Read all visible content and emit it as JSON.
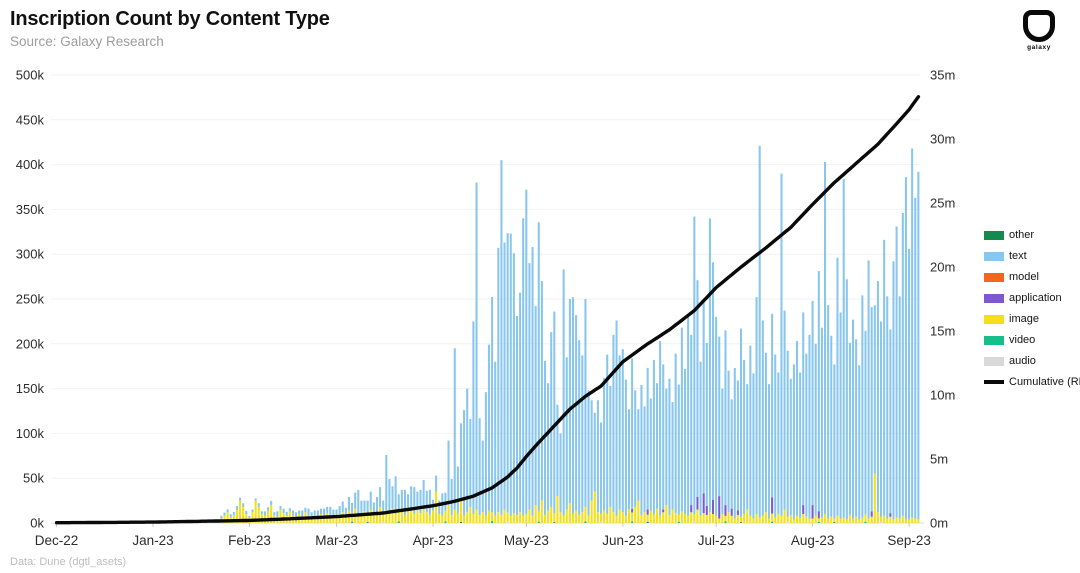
{
  "header": {
    "title": "Inscription Count by Content Type",
    "source": "Source: Galaxy Research"
  },
  "footer": {
    "credit": "Data: Dune (dgtl_asets)"
  },
  "logo": {
    "text": "galaxy"
  },
  "chart_data": {
    "type": "bar",
    "title": "Inscription Count by Content Type",
    "subtitle": "Source: Galaxy Research",
    "x_unit": "day",
    "days": 278,
    "grid": "horizontal",
    "ylim_left_thousands": [
      0,
      500
    ],
    "ylim_right_millions": [
      0,
      35
    ],
    "left_tick_labels": [
      "0k",
      "50k",
      "100k",
      "150k",
      "200k",
      "250k",
      "300k",
      "350k",
      "400k",
      "450k",
      "500k"
    ],
    "left_tick_values": [
      0,
      50,
      100,
      150,
      200,
      250,
      300,
      350,
      400,
      450,
      500
    ],
    "right_tick_labels": [
      "0m",
      "5m",
      "10m",
      "15m",
      "20m",
      "25m",
      "30m",
      "35m"
    ],
    "right_tick_values": [
      0,
      5,
      10,
      15,
      20,
      25,
      30,
      35
    ],
    "months": [
      {
        "label": "Dec-22",
        "day": 0
      },
      {
        "label": "Jan-23",
        "day": 31
      },
      {
        "label": "Feb-23",
        "day": 62
      },
      {
        "label": "Mar-23",
        "day": 90
      },
      {
        "label": "Apr-23",
        "day": 121
      },
      {
        "label": "May-23",
        "day": 151
      },
      {
        "label": "Jun-23",
        "day": 182
      },
      {
        "label": "Jul-23",
        "day": 212
      },
      {
        "label": "Aug-23",
        "day": 243
      },
      {
        "label": "Sep-23",
        "day": 274
      }
    ],
    "series": {
      "text": {
        "color": "#88C6EE",
        "start": 0,
        "values": [
          0.3,
          0.4,
          0.5,
          0.4,
          0.6,
          0.5,
          0.7,
          0.6,
          0.5,
          0.8,
          0.7,
          0.9,
          0.8,
          1,
          0.9,
          1.1,
          1,
          1.2,
          0.9,
          1.1,
          1.3,
          1,
          1.2,
          1.4,
          1.1,
          1.3,
          1.5,
          1.2,
          1.4,
          1.6,
          1.3,
          1.4,
          1.6,
          1.8,
          1.5,
          2,
          2.2,
          1.8,
          2.4,
          2,
          2.6,
          2.2,
          2.8,
          2.4,
          3,
          2.6,
          3.2,
          2.8,
          3.4,
          2.9,
          3.5,
          3,
          3.6,
          3.1,
          3.7,
          3.2,
          3.8,
          3.3,
          3.9,
          3.4,
          4,
          3.5,
          2,
          3,
          2.5,
          4,
          3,
          5,
          3.5,
          4.5,
          3,
          6,
          4,
          5,
          4.5,
          3.5,
          5,
          6,
          4,
          7,
          5,
          8,
          6,
          5,
          7,
          6,
          8,
          7,
          9,
          8,
          8,
          10,
          12,
          9,
          15,
          11,
          18,
          28,
          14,
          12,
          16,
          20,
          13,
          17,
          22,
          15,
          62,
          38,
          25,
          42,
          18,
          22,
          28,
          19,
          24,
          30,
          21,
          26,
          33,
          24,
          28,
          12,
          18,
          15,
          25,
          20,
          72,
          40,
          180,
          52,
          85,
          118,
          138,
          98,
          215,
          365,
          108,
          80,
          138,
          185,
          240,
          172,
          295,
          396,
          298,
          312,
          315,
          290,
          222,
          245,
          332,
          362,
          275,
          300,
          222,
          322,
          245,
          172,
          142,
          195,
          225,
          102,
          88,
          275,
          170,
          228,
          242,
          218,
          195,
          175,
          232,
          140,
          112,
          88,
          125,
          102,
          148,
          178,
          135,
          198,
          218,
          172,
          182,
          152,
          112,
          168,
          130,
          102,
          145,
          118,
          158,
          125,
          172,
          140,
          195,
          162,
          130,
          152,
          120,
          178,
          145,
          205,
          162,
          225,
          190,
          332,
          242,
          172,
          215,
          182,
          328,
          265,
          222,
          178,
          140,
          195,
          158,
          122,
          168,
          145,
          210,
          172,
          140,
          190,
          162,
          242,
          415,
          218,
          178,
          150,
          205,
          182,
          158,
          382,
          222,
          185,
          152,
          172,
          195,
          162,
          215,
          182,
          205,
          228,
          192,
          268,
          212,
          393,
          238,
          202,
          172,
          288,
          230,
          378,
          268,
          192,
          222,
          198,
          172,
          248,
          205,
          288,
          228,
          188,
          258,
          218,
          308,
          248,
          205,
          288,
          325,
          248,
          338,
          382,
          302,
          412,
          358,
          388
        ]
      },
      "image": {
        "color": "#F5DF16",
        "start": 53,
        "values": [
          5,
          8,
          12,
          6,
          9,
          15,
          25,
          18,
          10,
          6,
          12,
          25,
          18,
          10,
          8,
          14,
          20,
          9,
          7,
          15,
          11,
          8,
          13,
          9,
          6,
          10,
          7,
          12,
          8,
          6,
          9,
          7,
          10,
          8,
          11,
          9,
          7,
          7,
          9,
          12,
          8,
          14,
          10,
          16,
          9,
          11,
          13,
          8,
          15,
          10,
          12,
          18,
          9,
          14,
          11,
          16,
          10,
          12,
          15,
          9,
          13,
          17,
          10,
          14,
          11,
          15,
          12,
          9,
          14,
          35,
          10,
          8,
          12,
          20,
          9,
          15,
          11,
          25,
          8,
          12,
          18,
          10,
          15,
          9,
          12,
          8,
          14,
          10,
          8,
          12,
          9,
          15,
          10,
          8,
          11,
          9,
          12,
          8,
          10,
          15,
          8,
          20,
          12,
          25,
          9,
          14,
          18,
          10,
          30,
          12,
          8,
          15,
          22,
          10,
          14,
          9,
          12,
          16,
          8,
          25,
          35,
          12,
          9,
          14,
          10,
          18,
          12,
          8,
          15,
          12,
          8,
          15,
          10,
          18,
          25,
          9,
          12,
          8,
          14,
          10,
          16,
          8,
          12,
          20,
          9,
          15,
          11,
          8,
          13,
          10,
          8,
          12,
          9,
          15,
          8,
          11,
          9,
          12,
          10,
          8,
          5,
          10,
          6,
          12,
          8,
          5,
          9,
          6,
          10,
          15,
          8,
          5,
          10,
          6,
          8,
          12,
          5,
          9,
          6,
          10,
          8,
          15,
          6,
          9,
          5,
          8,
          6,
          10,
          7,
          5,
          5,
          8,
          4,
          6,
          10,
          5,
          7,
          4,
          8,
          5,
          6,
          4,
          9,
          5,
          7,
          4,
          6,
          8,
          5,
          7,
          55,
          12,
          6,
          8,
          5,
          7,
          4,
          6,
          5,
          8,
          4,
          4,
          6,
          5,
          4
        ]
      },
      "application": {
        "color": "#7E57D2",
        "sparse": {
          "185": 4,
          "190": 6,
          "195": 3,
          "204": 8,
          "206": 14,
          "208": 22,
          "209": 10,
          "211": 16,
          "213": 25,
          "215": 12,
          "217": 8,
          "219": 5,
          "230": 18,
          "240": 10,
          "243": 15,
          "245": 8,
          "262": 6,
          "268": 4
        }
      },
      "video": {
        "color": "#16BE8C",
        "sparse": {
          "95": 1.5,
          "110": 2,
          "125": 1.8,
          "140": 2.2,
          "155": 1.5,
          "170": 2,
          "185": 1.8,
          "200": 1.5,
          "215": 2,
          "230": 1.5,
          "245": 1.2,
          "260": 1.5
        }
      },
      "other": {
        "color": "#168A4E",
        "sparse": {
          "100": 1,
          "130": 1.2,
          "160": 1,
          "190": 1.2,
          "220": 1,
          "250": 1
        }
      },
      "audio": {
        "color": "#D9D9D9",
        "sparse": {
          "105": 1,
          "145": 1.5,
          "175": 1.2,
          "205": 1,
          "235": 1.2,
          "265": 1
        }
      },
      "model": {
        "color": "#F2661F",
        "sparse": {}
      }
    },
    "stack_order": [
      "audio",
      "other",
      "video",
      "image",
      "application",
      "model",
      "text"
    ],
    "legend": [
      {
        "key": "other",
        "label": "other",
        "type": "bar"
      },
      {
        "key": "text",
        "label": "text",
        "type": "bar"
      },
      {
        "key": "model",
        "label": "model",
        "type": "bar"
      },
      {
        "key": "application",
        "label": "application",
        "type": "bar"
      },
      {
        "key": "image",
        "label": "image",
        "type": "bar"
      },
      {
        "key": "video",
        "label": "video",
        "type": "bar"
      },
      {
        "key": "audio",
        "label": "audio",
        "type": "bar"
      },
      {
        "key": "cumulative",
        "label": "Cumulative (RHS)",
        "type": "line"
      }
    ],
    "cumulative_rhs": {
      "color": "#0A0A0A",
      "unit": "millions",
      "waypoints": [
        [
          0,
          0.02
        ],
        [
          31,
          0.07
        ],
        [
          62,
          0.2
        ],
        [
          75,
          0.33
        ],
        [
          90,
          0.5
        ],
        [
          105,
          0.78
        ],
        [
          121,
          1.35
        ],
        [
          128,
          1.7
        ],
        [
          134,
          2.1
        ],
        [
          140,
          2.75
        ],
        [
          145,
          3.6
        ],
        [
          148,
          4.3
        ],
        [
          151,
          5.2
        ],
        [
          155,
          6.3
        ],
        [
          160,
          7.6
        ],
        [
          165,
          8.9
        ],
        [
          170,
          9.9
        ],
        [
          175,
          10.7
        ],
        [
          182,
          12.6
        ],
        [
          190,
          14.0
        ],
        [
          197,
          15.1
        ],
        [
          205,
          16.6
        ],
        [
          212,
          18.4
        ],
        [
          220,
          20.0
        ],
        [
          228,
          21.5
        ],
        [
          236,
          23.1
        ],
        [
          243,
          24.9
        ],
        [
          250,
          26.6
        ],
        [
          257,
          28.1
        ],
        [
          264,
          29.6
        ],
        [
          270,
          31.2
        ],
        [
          274,
          32.3
        ],
        [
          277,
          33.3
        ]
      ]
    }
  }
}
